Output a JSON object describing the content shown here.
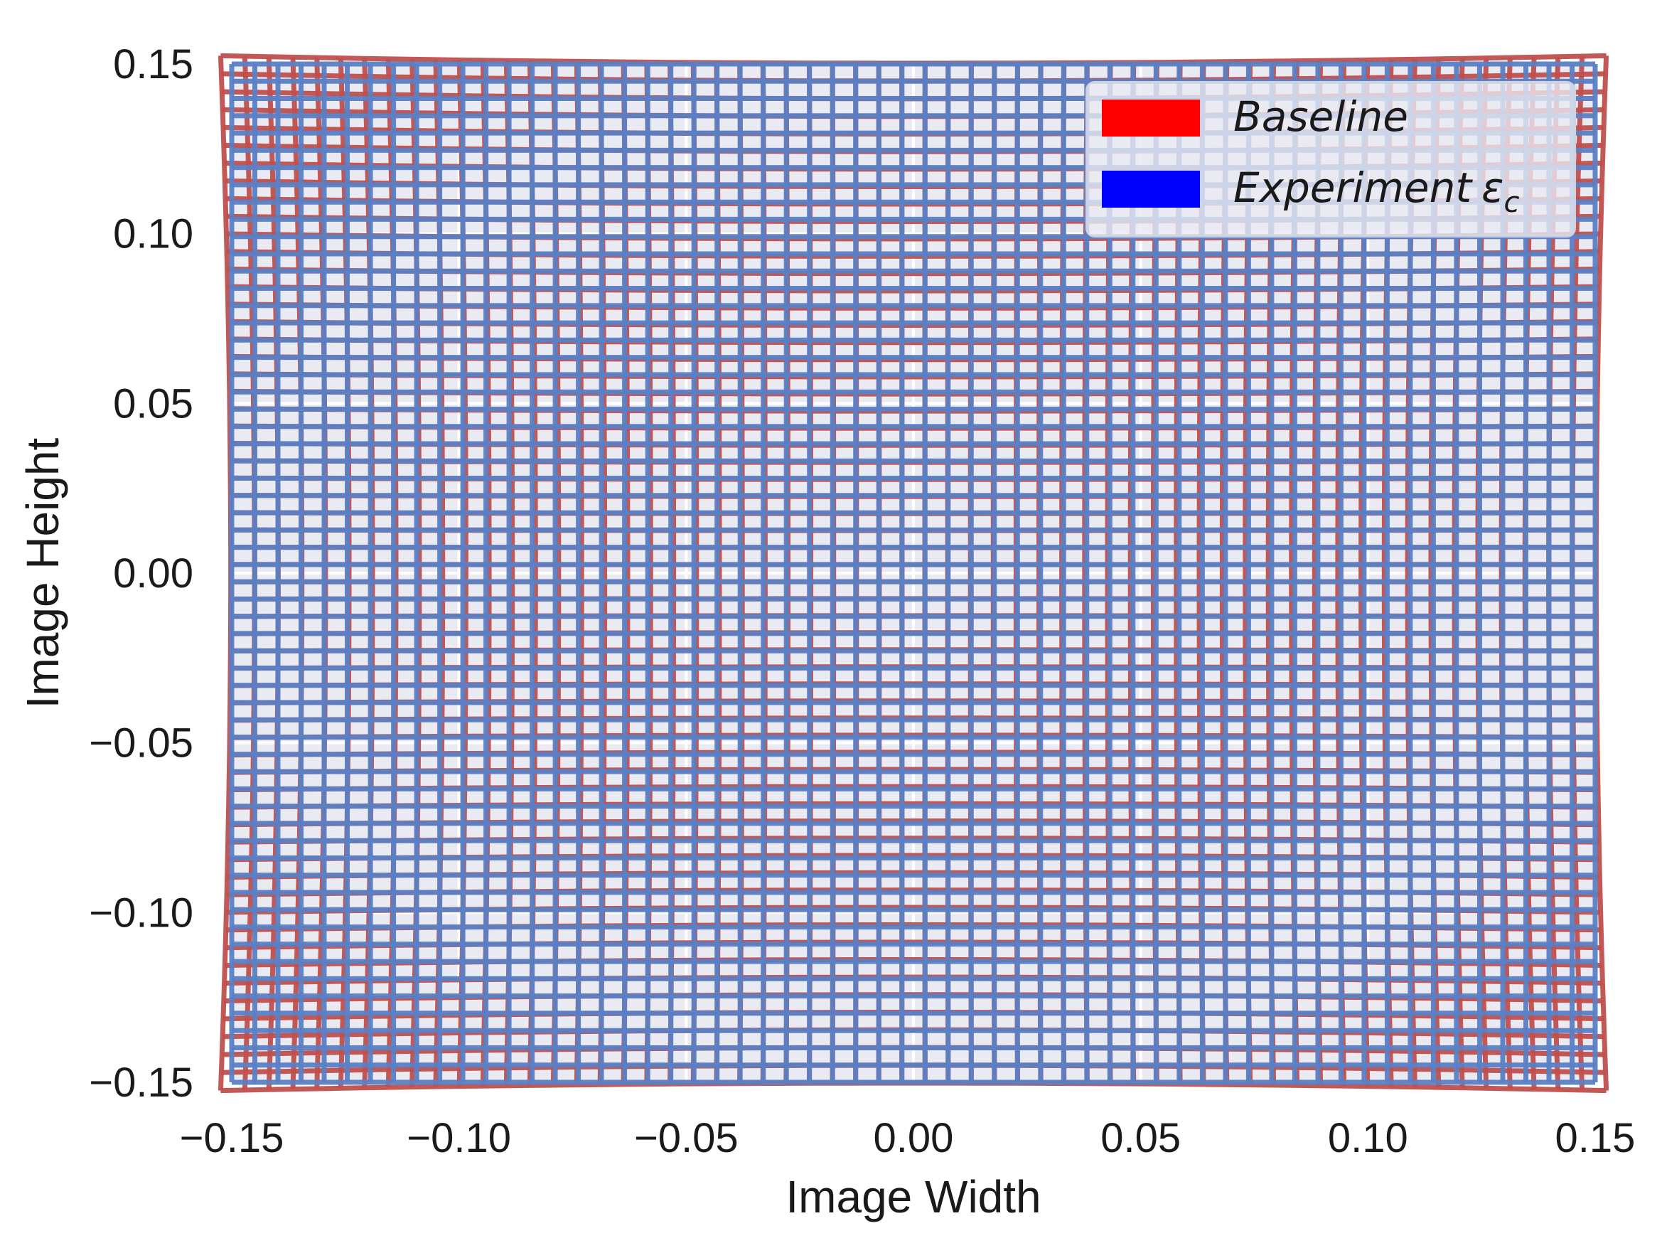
{
  "chart_data": {
    "type": "line",
    "title": "",
    "xlabel": "Image Width",
    "ylabel": "Image Height",
    "xlim": [
      -0.15,
      0.15
    ],
    "ylim": [
      -0.15,
      0.15
    ],
    "grid": true,
    "legend_position": "top-right",
    "xticks": [
      -0.15,
      -0.1,
      -0.05,
      0.0,
      0.05,
      0.1,
      0.15
    ],
    "yticks": [
      -0.15,
      -0.1,
      -0.05,
      0.0,
      0.05,
      0.1,
      0.15
    ],
    "xtick_labels": [
      "−0.15",
      "−0.10",
      "−0.05",
      "0.00",
      "0.05",
      "0.10",
      "0.15"
    ],
    "ytick_labels": [
      "−0.15",
      "−0.10",
      "−0.05",
      "0.00",
      "0.05",
      "0.10",
      "0.15"
    ],
    "series": [
      {
        "name": "Baseline",
        "legend_label": "Baseline",
        "legend_color": "#ff0000",
        "line_color": "#c0504d",
        "grid_lines": 60,
        "extent": [
          -0.148,
          0.148
        ],
        "distortion": 0.03
      },
      {
        "name": "Experiment εc",
        "legend_label": "Experiment",
        "legend_symbol": "ε",
        "legend_subscript": "c",
        "legend_color": "#0000ff",
        "line_color": "#5b7fc4",
        "grid_lines": 60,
        "extent": [
          -0.15,
          0.15
        ],
        "distortion": 0.0
      }
    ]
  },
  "colors": {
    "axes_background": "#eaeaf2",
    "grid": "#ffffff"
  }
}
